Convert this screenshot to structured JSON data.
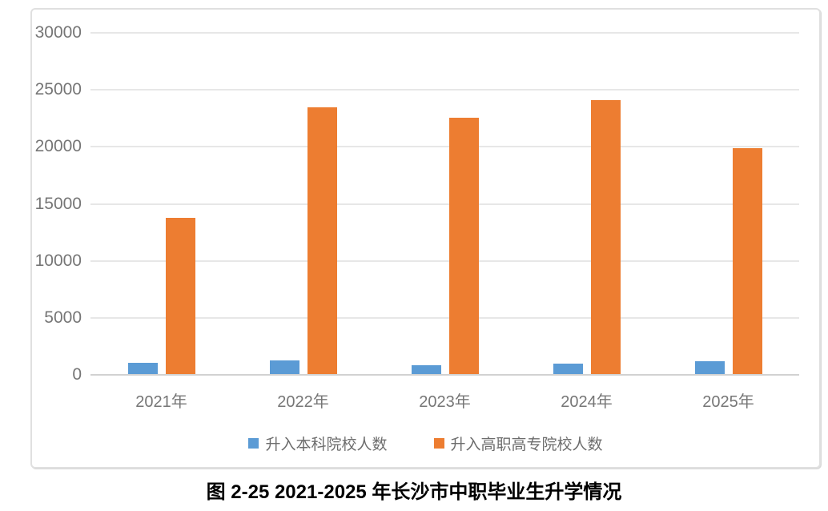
{
  "chart_data": {
    "type": "bar",
    "title": "图 2-25 2021-2025 年长沙市中职毕业生升学情况",
    "categories": [
      "2021年",
      "2022年",
      "2023年",
      "2024年",
      "2025年"
    ],
    "series": [
      {
        "name": "升入本科院校人数",
        "color": "#5B9BD5",
        "values": [
          1000,
          1200,
          800,
          900,
          1100
        ]
      },
      {
        "name": "升入高职高专院校人数",
        "color": "#ED7D31",
        "values": [
          13700,
          23400,
          22500,
          24050,
          19800
        ]
      }
    ],
    "xlabel": "",
    "ylabel": "",
    "ylim": [
      0,
      30000
    ],
    "ytick_step": 5000,
    "ytick_labels": [
      "0",
      "5000",
      "10000",
      "15000",
      "20000",
      "25000",
      "30000"
    ],
    "grid": true,
    "legend_position": "bottom"
  },
  "layout_colors": {
    "bar_blue": "#5B9BD5",
    "bar_orange": "#ED7D31",
    "gridline": "#e7e7e7",
    "axis_line": "#d2d2d2",
    "axis_text": "#767676",
    "legend_text": "#6d6d6d",
    "panel_border": "#e0e0e0"
  }
}
